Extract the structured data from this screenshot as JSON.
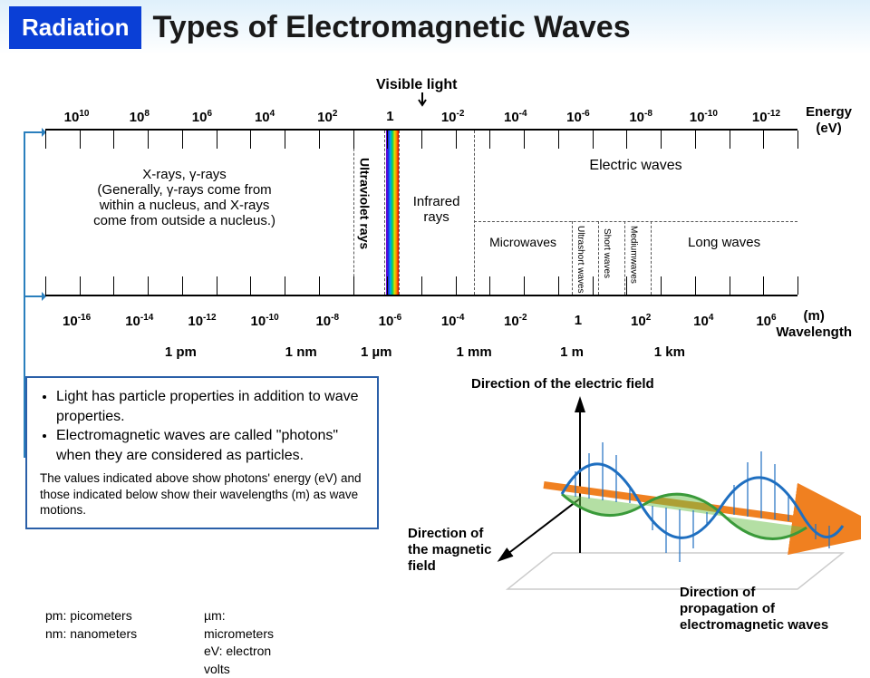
{
  "header": {
    "badge": "Radiation",
    "title": "Types of Electromagnetic Waves"
  },
  "spectrum": {
    "visible_label": "Visible light",
    "energy_label_l1": "Energy",
    "energy_label_l2": "(eV)",
    "wavelength_label_l1": "(m)",
    "wavelength_label_l2": "Wavelength",
    "energy_exponents": [
      "10",
      "8",
      "6",
      "4",
      "2",
      "1",
      "-2",
      "-4",
      "-6",
      "-8",
      "-10",
      "-12"
    ],
    "wavelength_exponents": [
      "-16",
      "-14",
      "-12",
      "-10",
      "-8",
      "-6",
      "-4",
      "-2",
      "1",
      "2",
      "4",
      "6"
    ],
    "units": [
      {
        "pos_pct": 18,
        "text": "1 pm"
      },
      {
        "pos_pct": 34,
        "text": "1 nm"
      },
      {
        "pos_pct": 44,
        "text": "1 µm"
      },
      {
        "pos_pct": 57,
        "text": "1 mm"
      },
      {
        "pos_pct": 70,
        "text": "1 m"
      },
      {
        "pos_pct": 83,
        "text": "1 km"
      }
    ],
    "regions": {
      "xray_l1": "X-rays, γ-rays",
      "xray_l2": "(Generally, γ-rays come from",
      "xray_l3": "within a nucleus, and X-rays",
      "xray_l4": "come from outside a nucleus.)",
      "uv": "Ultraviolet rays",
      "ir_l1": "Infrared",
      "ir_l2": "rays",
      "electric": "Electric waves",
      "micro": "Microwaves",
      "ushort": "Ultrashort waves",
      "short": "Short waves",
      "medium": "Mediumwaves",
      "long": "Long waves"
    }
  },
  "info": {
    "li1": "Light has particle properties in addition to wave properties.",
    "li2": "Electromagnetic waves are called \"photons\" when they are considered as particles.",
    "small": "The values indicated above show photons' energy (eV) and those indicated below show their wavelengths (m) as wave motions."
  },
  "legend": {
    "pm": "pm: picometers",
    "nm": "nm: nanometers",
    "um": "µm: micrometers",
    "ev": "eV: electron volts"
  },
  "wave": {
    "efield": "Direction of the electric field",
    "bfield_l1": "Direction of",
    "bfield_l2": "the magnetic",
    "bfield_l3": "field",
    "prop_l1": "Direction of",
    "prop_l2": "propagation of",
    "prop_l3": "electromagnetic waves",
    "colors": {
      "efield": "#1f6fc0",
      "bfield": "#3a9a3a",
      "arrow": "#f08020",
      "axes": "#000000",
      "shadow": "#cccccc"
    }
  }
}
